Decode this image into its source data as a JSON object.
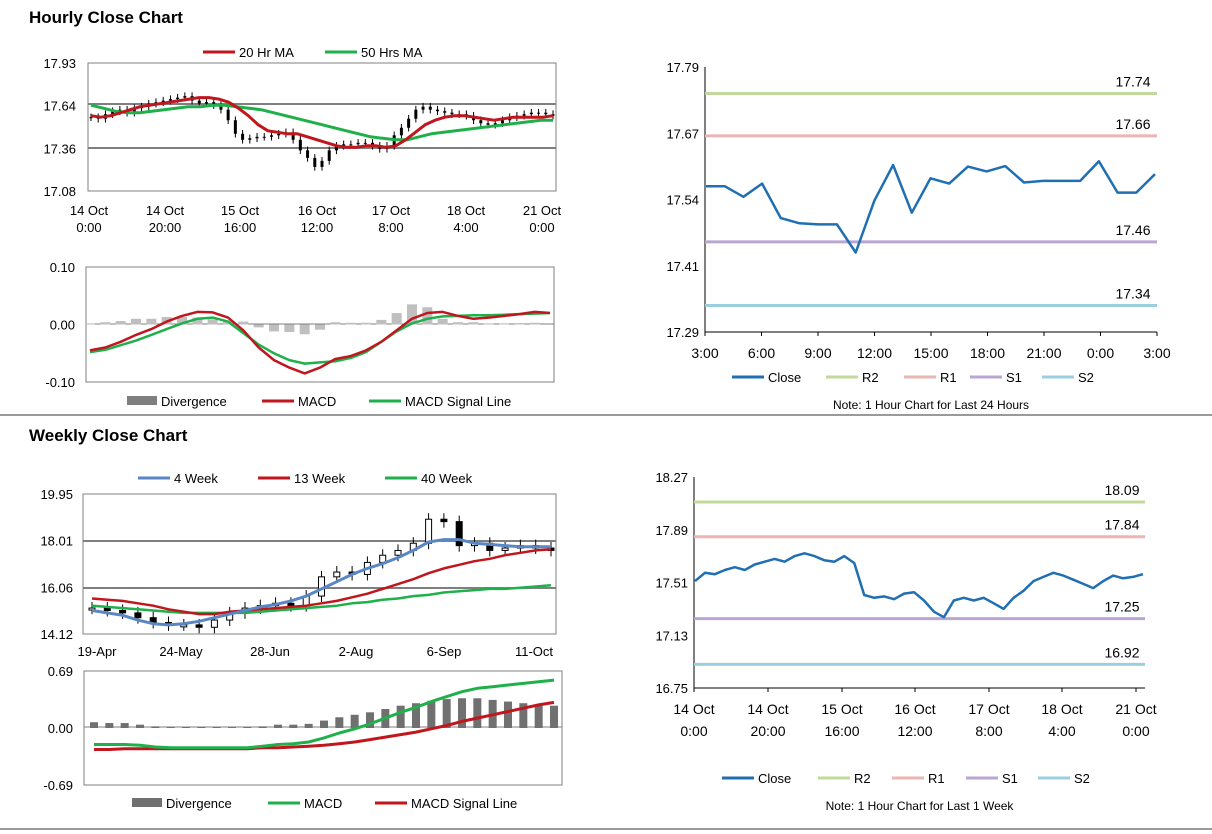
{
  "titles": {
    "hourly": "Hourly Close Chart",
    "weekly": "Weekly Close Chart"
  },
  "colors": {
    "close": "#1f6fb2",
    "ma_red": "#c0161d",
    "ma_green": "#1fb04b",
    "ma_blue": "#5a86c4",
    "r2": "#c3d99b",
    "r1": "#eab5b2",
    "s1": "#b9a7d1",
    "s2": "#99cfdf",
    "grid": "#7f7f7f",
    "hist": "#7f7f7f",
    "candle": "#000000"
  },
  "chart_data": [
    {
      "id": "hourly-price",
      "type": "candlestick",
      "title": "Hourly Close Chart",
      "legend": [
        "20 Hr MA",
        "50 Hrs MA"
      ],
      "y_ticks": [
        "17.93",
        "17.64",
        "17.36",
        "17.08"
      ],
      "ylim": [
        17.08,
        17.93
      ],
      "x_ticks": [
        [
          "14 Oct",
          "0:00"
        ],
        [
          "14 Oct",
          "20:00"
        ],
        [
          "15 Oct",
          "16:00"
        ],
        [
          "16 Oct",
          "12:00"
        ],
        [
          "17 Oct",
          "8:00"
        ],
        [
          "18 Oct",
          "4:00"
        ],
        [
          "21 Oct",
          "0:00"
        ]
      ],
      "close": [
        17.57,
        17.56,
        17.59,
        17.61,
        17.62,
        17.6,
        17.63,
        17.64,
        17.66,
        17.67,
        17.68,
        17.69,
        17.7,
        17.71,
        17.68,
        17.66,
        17.67,
        17.65,
        17.62,
        17.55,
        17.46,
        17.42,
        17.43,
        17.44,
        17.44,
        17.45,
        17.46,
        17.47,
        17.42,
        17.35,
        17.3,
        17.24,
        17.28,
        17.35,
        17.38,
        17.39,
        17.39,
        17.4,
        17.4,
        17.38,
        17.36,
        17.38,
        17.45,
        17.5,
        17.56,
        17.62,
        17.64,
        17.62,
        17.61,
        17.6,
        17.59,
        17.59,
        17.58,
        17.55,
        17.53,
        17.52,
        17.53,
        17.55,
        17.57,
        17.58,
        17.59,
        17.6,
        17.6,
        17.59,
        17.58
      ],
      "series": [
        {
          "name": "20 Hr MA",
          "values": [
            17.58,
            17.57,
            17.58,
            17.6,
            17.62,
            17.64,
            17.65,
            17.66,
            17.67,
            17.68,
            17.69,
            17.7,
            17.7,
            17.69,
            17.67,
            17.63,
            17.58,
            17.52,
            17.48,
            17.47,
            17.46,
            17.46,
            17.44,
            17.42,
            17.4,
            17.38,
            17.37,
            17.37,
            17.38,
            17.38,
            17.37,
            17.38,
            17.42,
            17.47,
            17.52,
            17.55,
            17.57,
            17.58,
            17.58,
            17.57,
            17.56,
            17.55,
            17.56,
            17.57,
            17.57,
            17.57,
            17.57,
            17.58
          ]
        },
        {
          "name": "50 Hrs MA",
          "values": [
            17.65,
            17.63,
            17.61,
            17.6,
            17.6,
            17.61,
            17.62,
            17.63,
            17.64,
            17.64,
            17.65,
            17.65,
            17.64,
            17.63,
            17.62,
            17.6,
            17.58,
            17.56,
            17.54,
            17.52,
            17.5,
            17.48,
            17.46,
            17.44,
            17.43,
            17.42,
            17.42,
            17.44,
            17.46,
            17.47,
            17.48,
            17.49,
            17.5,
            17.51,
            17.52,
            17.53,
            17.54,
            17.55,
            17.55
          ]
        }
      ]
    },
    {
      "id": "hourly-macd",
      "type": "line+histogram",
      "y_ticks": [
        "0.10",
        "0.00",
        "-0.10"
      ],
      "ylim": [
        -0.1,
        0.1
      ],
      "legend": [
        "Divergence",
        "MACD",
        "MACD Signal Line"
      ],
      "series": [
        {
          "name": "MACD",
          "values": [
            -0.045,
            -0.04,
            -0.03,
            -0.018,
            -0.008,
            0.005,
            0.015,
            0.022,
            0.021,
            0.012,
            -0.01,
            -0.04,
            -0.062,
            -0.075,
            -0.085,
            -0.075,
            -0.06,
            -0.055,
            -0.045,
            -0.03,
            -0.01,
            0.01,
            0.02,
            0.022,
            0.015,
            0.01,
            0.012,
            0.015,
            0.018,
            0.022,
            0.02
          ]
        },
        {
          "name": "MACD Signal Line",
          "values": [
            -0.048,
            -0.044,
            -0.036,
            -0.028,
            -0.018,
            -0.008,
            0.002,
            0.01,
            0.012,
            0.005,
            -0.015,
            -0.035,
            -0.05,
            -0.062,
            -0.068,
            -0.066,
            -0.064,
            -0.058,
            -0.048,
            -0.03,
            -0.012,
            0.002,
            0.01,
            0.014,
            0.015,
            0.016,
            0.016,
            0.017,
            0.018,
            0.019,
            0.02
          ]
        },
        {
          "name": "Divergence",
          "values": [
            0.002,
            0.004,
            0.006,
            0.01,
            0.01,
            0.013,
            0.013,
            0.012,
            0.009,
            0.007,
            0.005,
            -0.005,
            -0.012,
            -0.013,
            -0.017,
            -0.009,
            0.004,
            0.003,
            0.003,
            0.008,
            0.02,
            0.035,
            0.03,
            0.01,
            0.004,
            0.004,
            0.002,
            0.002,
            0.001,
            0.003,
            0.0
          ]
        }
      ]
    },
    {
      "id": "hourly-close-24h",
      "type": "line",
      "y_ticks": [
        "17.79",
        "17.67",
        "17.54",
        "17.41",
        "17.29"
      ],
      "ylim": [
        17.29,
        17.79
      ],
      "x_ticks": [
        "3:00",
        "6:00",
        "9:00",
        "12:00",
        "15:00",
        "18:00",
        "21:00",
        "0:00",
        "3:00"
      ],
      "close": [
        17.565,
        17.565,
        17.545,
        17.57,
        17.505,
        17.495,
        17.493,
        17.493,
        17.44,
        17.538,
        17.605,
        17.515,
        17.58,
        17.57,
        17.602,
        17.593,
        17.603,
        17.572,
        17.575,
        17.575,
        17.575,
        17.612,
        17.553,
        17.553,
        17.588
      ],
      "levels": [
        {
          "name": "R2",
          "value": 17.74,
          "label": "17.74"
        },
        {
          "name": "R1",
          "value": 17.66,
          "label": "17.66"
        },
        {
          "name": "S1",
          "value": 17.46,
          "label": "17.46"
        },
        {
          "name": "S2",
          "value": 17.34,
          "label": "17.34"
        }
      ],
      "legend": [
        "Close",
        "R2",
        "R1",
        "S1",
        "S2"
      ],
      "note": "Note: 1 Hour Chart for Last 24 Hours"
    },
    {
      "id": "weekly-price",
      "type": "candlestick",
      "title": "Weekly Close Chart",
      "legend": [
        "4 Week",
        "13 Week",
        "40 Week"
      ],
      "y_ticks": [
        "19.95",
        "18.01",
        "16.06",
        "14.12"
      ],
      "ylim": [
        14.12,
        19.95
      ],
      "x_ticks": [
        "19-Apr",
        "24-May",
        "28-Jun",
        "2-Aug",
        "6-Sep",
        "11-Oct"
      ],
      "close": [
        15.2,
        15.1,
        15.0,
        14.8,
        14.6,
        14.5,
        14.5,
        14.4,
        14.7,
        15.0,
        15.2,
        15.3,
        15.4,
        15.3,
        15.7,
        16.5,
        16.7,
        16.6,
        17.1,
        17.4,
        17.6,
        17.9,
        18.9,
        18.8,
        17.8,
        17.9,
        17.6,
        17.7,
        17.8,
        17.7,
        17.6
      ],
      "series": [
        {
          "name": "4 Week",
          "values": [
            15.1,
            15.0,
            14.9,
            14.7,
            14.55,
            14.5,
            14.55,
            14.65,
            14.8,
            14.95,
            15.1,
            15.25,
            15.35,
            15.5,
            15.7,
            16.0,
            16.3,
            16.6,
            16.85,
            17.05,
            17.3,
            17.6,
            17.95,
            18.05,
            18.05,
            17.9,
            17.85,
            17.8,
            17.75,
            17.75,
            17.75
          ]
        },
        {
          "name": "13 Week",
          "values": [
            15.6,
            15.55,
            15.5,
            15.4,
            15.3,
            15.15,
            15.05,
            14.95,
            14.95,
            15.05,
            15.1,
            15.15,
            15.2,
            15.25,
            15.3,
            15.4,
            15.5,
            15.65,
            15.8,
            16.0,
            16.2,
            16.4,
            16.65,
            16.85,
            17.0,
            17.15,
            17.25,
            17.4,
            17.5,
            17.6,
            17.65
          ]
        },
        {
          "name": "40 Week",
          "values": [
            15.3,
            15.25,
            15.2,
            15.15,
            15.1,
            15.05,
            15.0,
            15.0,
            15.0,
            15.0,
            15.0,
            15.05,
            15.1,
            15.15,
            15.2,
            15.25,
            15.3,
            15.4,
            15.45,
            15.55,
            15.6,
            15.7,
            15.75,
            15.85,
            15.9,
            15.95,
            16.0,
            16.0,
            16.05,
            16.1,
            16.15
          ]
        }
      ]
    },
    {
      "id": "weekly-macd",
      "type": "line+histogram",
      "y_ticks": [
        "0.69",
        "0.00",
        "-0.69"
      ],
      "ylim": [
        -0.69,
        0.69
      ],
      "legend": [
        "Divergence",
        "MACD",
        "MACD Signal Line"
      ],
      "series": [
        {
          "name": "MACD",
          "values": [
            -0.2,
            -0.2,
            -0.2,
            -0.21,
            -0.23,
            -0.24,
            -0.24,
            -0.24,
            -0.24,
            -0.24,
            -0.24,
            -0.22,
            -0.2,
            -0.19,
            -0.17,
            -0.12,
            -0.06,
            -0.01,
            0.05,
            0.12,
            0.19,
            0.25,
            0.32,
            0.38,
            0.44,
            0.48,
            0.5,
            0.52,
            0.54,
            0.56,
            0.58
          ]
        },
        {
          "name": "MACD Signal Line",
          "values": [
            -0.26,
            -0.26,
            -0.25,
            -0.25,
            -0.25,
            -0.25,
            -0.25,
            -0.25,
            -0.25,
            -0.25,
            -0.25,
            -0.24,
            -0.24,
            -0.23,
            -0.22,
            -0.21,
            -0.19,
            -0.17,
            -0.14,
            -0.11,
            -0.08,
            -0.05,
            -0.01,
            0.03,
            0.08,
            0.12,
            0.16,
            0.2,
            0.24,
            0.28,
            0.31
          ]
        },
        {
          "name": "Divergence",
          "values": [
            0.07,
            0.06,
            0.06,
            0.04,
            0.02,
            0.01,
            0.01,
            0.01,
            0.01,
            0.01,
            0.01,
            0.02,
            0.04,
            0.04,
            0.05,
            0.09,
            0.13,
            0.16,
            0.19,
            0.23,
            0.27,
            0.3,
            0.33,
            0.35,
            0.36,
            0.36,
            0.34,
            0.32,
            0.3,
            0.28,
            0.27
          ]
        }
      ]
    },
    {
      "id": "weekly-close-1w",
      "type": "line",
      "y_ticks": [
        "18.27",
        "17.89",
        "17.51",
        "17.13",
        "16.75"
      ],
      "ylim": [
        16.75,
        18.27
      ],
      "x_ticks": [
        [
          "14 Oct",
          "0:00"
        ],
        [
          "14 Oct",
          "20:00"
        ],
        [
          "15 Oct",
          "16:00"
        ],
        [
          "16 Oct",
          "12:00"
        ],
        [
          "17 Oct",
          "8:00"
        ],
        [
          "18 Oct",
          "4:00"
        ],
        [
          "21 Oct",
          "0:00"
        ]
      ],
      "close": [
        17.52,
        17.58,
        17.57,
        17.6,
        17.62,
        17.6,
        17.64,
        17.66,
        17.68,
        17.66,
        17.7,
        17.72,
        17.7,
        17.67,
        17.66,
        17.7,
        17.65,
        17.42,
        17.4,
        17.41,
        17.39,
        17.43,
        17.44,
        17.38,
        17.3,
        17.26,
        17.38,
        17.4,
        17.38,
        17.4,
        17.36,
        17.32,
        17.4,
        17.45,
        17.52,
        17.55,
        17.58,
        17.56,
        17.53,
        17.5,
        17.47,
        17.52,
        17.56,
        17.54,
        17.55,
        17.57
      ],
      "levels": [
        {
          "name": "R2",
          "value": 18.09,
          "label": "18.09"
        },
        {
          "name": "R1",
          "value": 17.84,
          "label": "17.84"
        },
        {
          "name": "S1",
          "value": 17.25,
          "label": "17.25"
        },
        {
          "name": "S2",
          "value": 16.92,
          "label": "16.92"
        }
      ],
      "legend": [
        "Close",
        "R2",
        "R1",
        "S1",
        "S2"
      ],
      "note": "Note: 1 Hour Chart for Last 1 Week"
    }
  ]
}
